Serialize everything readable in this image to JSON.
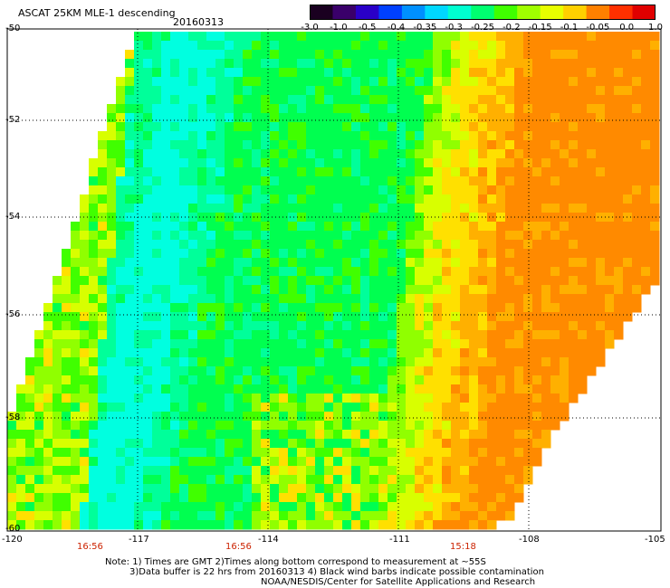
{
  "header": {
    "title": "ASCAT 25KM MLE-1 descending",
    "date": "20160313"
  },
  "colorbar": {
    "labels": [
      "-3.0",
      "-1.0",
      "-0.5",
      "-0.4",
      "-0.35",
      "-0.3",
      "-0.25",
      "-0.2",
      "-0.15",
      "-0.1",
      "-0.05",
      "0.0",
      "1.0"
    ],
    "colors": [
      "#1a0020",
      "#3a006a",
      "#2a00c8",
      "#0040ff",
      "#0090ff",
      "#00d8ff",
      "#00ffd0",
      "#00ff70",
      "#40ff00",
      "#a0ff00",
      "#e8ff00",
      "#ffd000",
      "#ff8000",
      "#ff3000",
      "#e00000"
    ]
  },
  "map": {
    "lat_ticks": [
      "-50",
      "-52",
      "-54",
      "-56",
      "-58",
      "-60"
    ],
    "lon_ticks": [
      "-120",
      "-117",
      "-114",
      "-111",
      "-108",
      "-105"
    ],
    "time_labels": [
      "16:56",
      "16:56",
      "15:18"
    ],
    "grid_style": "dotted"
  },
  "footer": {
    "line1": "Note: 1) Times are GMT 2)Times along bottom correspond to measurement at ~55S",
    "line2": "3)Data buffer is 22 hrs from 20160313 4) Black wind barbs indicate possible contamination",
    "line3": "NOAA/NESDIS/Center for Satellite Applications and Research"
  }
}
